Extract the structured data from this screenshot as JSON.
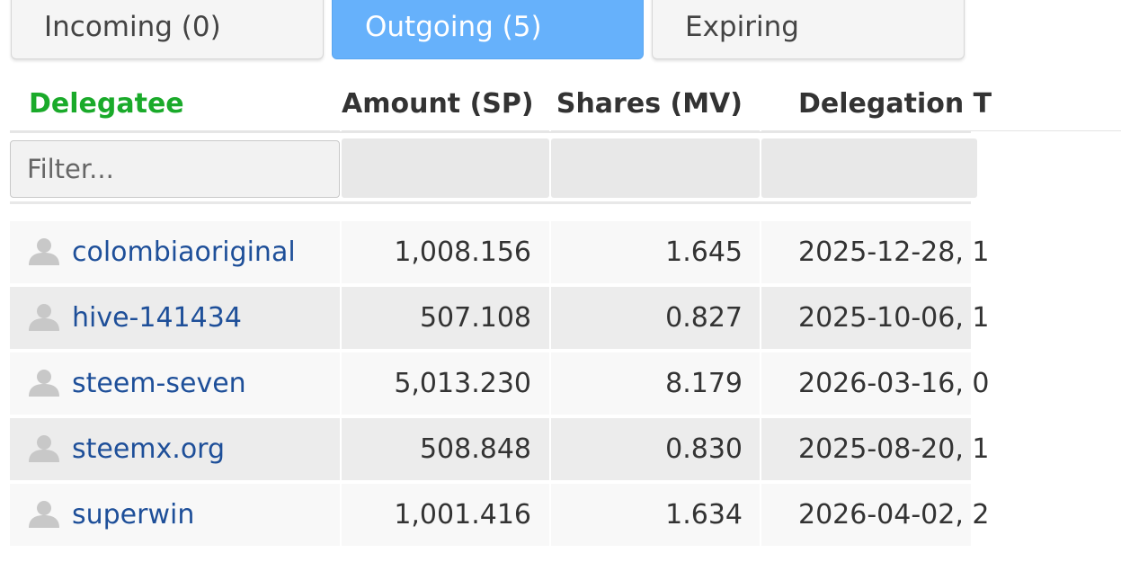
{
  "tabs": {
    "incoming": "Incoming (0)",
    "outgoing": "Outgoing (5)",
    "expiring": "Expiring"
  },
  "table": {
    "headers": {
      "delegatee": "Delegatee",
      "amount": "Amount (SP)",
      "shares": "Shares (MV)",
      "time": "Delegation T"
    },
    "filter_placeholder": "Filter...",
    "rows": [
      {
        "name": "colombiaoriginal",
        "amount": "1,008.156",
        "shares": "1.645",
        "time": "2025-12-28, 1"
      },
      {
        "name": "hive-141434",
        "amount": "507.108",
        "shares": "0.827",
        "time": "2025-10-06, 1"
      },
      {
        "name": "steem-seven",
        "amount": "5,013.230",
        "shares": "8.179",
        "time": "2026-03-16, 0"
      },
      {
        "name": "steemx.org",
        "amount": "508.848",
        "shares": "0.830",
        "time": "2025-08-20, 1"
      },
      {
        "name": "superwin",
        "amount": "1,001.416",
        "shares": "1.634",
        "time": "2026-04-02, 2"
      }
    ]
  },
  "icons": {
    "avatar": "user-avatar-icon"
  },
  "colors": {
    "active_tab": "#66b1fb",
    "delegatee_header": "#1aaa2a",
    "link": "#1e4f99"
  }
}
